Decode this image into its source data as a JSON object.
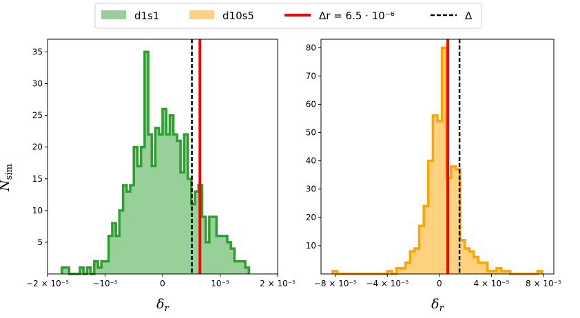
{
  "legend": {
    "location": "top-center",
    "entries": [
      {
        "label": "d1s1",
        "kind": "patch",
        "color": "#98d09a"
      },
      {
        "label": "d10s5",
        "kind": "patch",
        "color": "#ffd27f"
      },
      {
        "label": "Δr = 6.5 · 10⁻⁶",
        "kind": "line",
        "color": "#ff0000",
        "style": "solid"
      },
      {
        "label": "Δ",
        "kind": "line",
        "color": "#000000",
        "style": "dashed"
      }
    ]
  },
  "colors": {
    "d1s1_fill": "#98d09a",
    "d1s1_edge": "#2ca02c",
    "d10s5_fill": "#ffd27f",
    "d10s5_edge": "#ffa500",
    "true_line": "#ff0000",
    "delta_line": "#000000"
  },
  "chart_data": [
    {
      "type": "histogram",
      "series": "d1s1",
      "xlabel": "δr",
      "ylabel": "N_sim",
      "xlim": [
        -2e-05,
        2e-05
      ],
      "ylim": [
        0,
        37
      ],
      "x_ticks": [
        {
          "value": -2e-05,
          "label": "−2 × 10⁻⁵"
        },
        {
          "value": -1e-05,
          "label": "−10⁻⁵"
        },
        {
          "value": 0,
          "label": "0"
        },
        {
          "value": 1e-05,
          "label": "10⁻⁵"
        },
        {
          "value": 2e-05,
          "label": "2 × 10⁻⁵"
        }
      ],
      "y_ticks": [
        5,
        10,
        15,
        20,
        25,
        30,
        35
      ],
      "bin_edges": [
        -1.75e-05,
        -1.6875e-05,
        -1.625e-05,
        -1.5625e-05,
        -1.5e-05,
        -1.4375e-05,
        -1.375e-05,
        -1.3125e-05,
        -1.25e-05,
        -1.1875e-05,
        -1.125e-05,
        -1.0625e-05,
        -1e-05,
        -9.375e-06,
        -8.75e-06,
        -8.125e-06,
        -7.5e-06,
        -6.875e-06,
        -6.25e-06,
        -5.625e-06,
        -5e-06,
        -4.375e-06,
        -3.75e-06,
        -3.125e-06,
        -2.5e-06,
        -1.875e-06,
        -1.25e-06,
        -6.25e-07,
        0.0,
        6.25e-07,
        1.25e-06,
        1.875e-06,
        2.5e-06,
        3.125e-06,
        3.75e-06,
        4.375e-06,
        5e-06,
        5.625e-06,
        6.25e-06,
        6.875e-06,
        7.5e-06,
        8.125e-06,
        8.75e-06,
        9.375e-06,
        1e-05,
        1.0625e-05,
        1.125e-05,
        1.1875e-05,
        1.25e-05,
        1.3125e-05,
        1.375e-05,
        1.4375e-05,
        1.5e-05
      ],
      "counts": [
        1,
        1,
        0,
        0,
        0,
        1,
        0,
        1,
        0,
        2,
        1,
        2,
        2,
        6,
        8,
        6,
        10,
        14,
        13,
        14,
        20,
        17,
        20,
        35,
        22,
        17,
        23,
        22,
        26,
        22,
        25,
        22,
        21,
        16,
        22,
        15,
        11,
        13,
        14,
        9,
        5,
        9,
        9,
        6,
        6,
        6,
        5,
        4,
        2,
        2,
        2,
        1
      ],
      "vlines": [
        {
          "name": "true",
          "x": 6.5e-06,
          "color": "#ff0000",
          "style": "solid"
        },
        {
          "name": "delta",
          "x": 5.1e-06,
          "color": "#000000",
          "style": "dashed"
        }
      ]
    },
    {
      "type": "histogram",
      "series": "d10s5",
      "xlabel": "δr",
      "ylabel": "",
      "xlim": [
        -9.1e-05,
        8.8e-05
      ],
      "ylim": [
        0,
        83
      ],
      "x_ticks": [
        {
          "value": -8e-05,
          "label": "−8 × 10⁻⁵"
        },
        {
          "value": -4e-05,
          "label": "−4 × 10⁻⁵"
        },
        {
          "value": 0,
          "label": "0"
        },
        {
          "value": 4e-05,
          "label": "4 × 10⁻⁵"
        },
        {
          "value": 8e-05,
          "label": "8 × 10⁻⁵"
        }
      ],
      "y_ticks": [
        10,
        20,
        30,
        40,
        50,
        60,
        70,
        80
      ],
      "bin_edges": [
        -8.2e-05,
        -7.85e-05,
        -7.5e-05,
        -7.15e-05,
        -6.8e-05,
        -6.45e-05,
        -6.1e-05,
        -5.75e-05,
        -5.4e-05,
        -5.05e-05,
        -4.7e-05,
        -4.35e-05,
        -4e-05,
        -3.65e-05,
        -3.3e-05,
        -2.95e-05,
        -2.6e-05,
        -2.25e-05,
        -1.9e-05,
        -1.55e-05,
        -1.2e-05,
        -8.5e-06,
        -5e-06,
        -1.5e-06,
        2e-06,
        5.5e-06,
        9e-06,
        1.25e-05,
        1.6e-05,
        1.95e-05,
        2.3e-05,
        2.65e-05,
        3e-05,
        3.35e-05,
        3.7e-05,
        4.05e-05,
        4.4e-05,
        4.75e-05,
        5.1e-05,
        5.45e-05,
        5.8e-05,
        6.15e-05,
        6.5e-05,
        6.85e-05,
        7.2e-05,
        7.55e-05,
        7.9e-05
      ],
      "counts": [
        1,
        0,
        0,
        0,
        0,
        0,
        0,
        0,
        0,
        0,
        0,
        0,
        1,
        0,
        2,
        2,
        4,
        8,
        9,
        17,
        24,
        40,
        56,
        54,
        80,
        34,
        38,
        37,
        12,
        9,
        8,
        6,
        4,
        4,
        1,
        1,
        2,
        1,
        1,
        0,
        0,
        0,
        0,
        0,
        0,
        1
      ],
      "vlines": [
        {
          "name": "true",
          "x": 6.5e-06,
          "color": "#ff0000",
          "style": "solid"
        },
        {
          "name": "delta",
          "x": 1.55e-05,
          "color": "#000000",
          "style": "dashed"
        }
      ]
    }
  ]
}
